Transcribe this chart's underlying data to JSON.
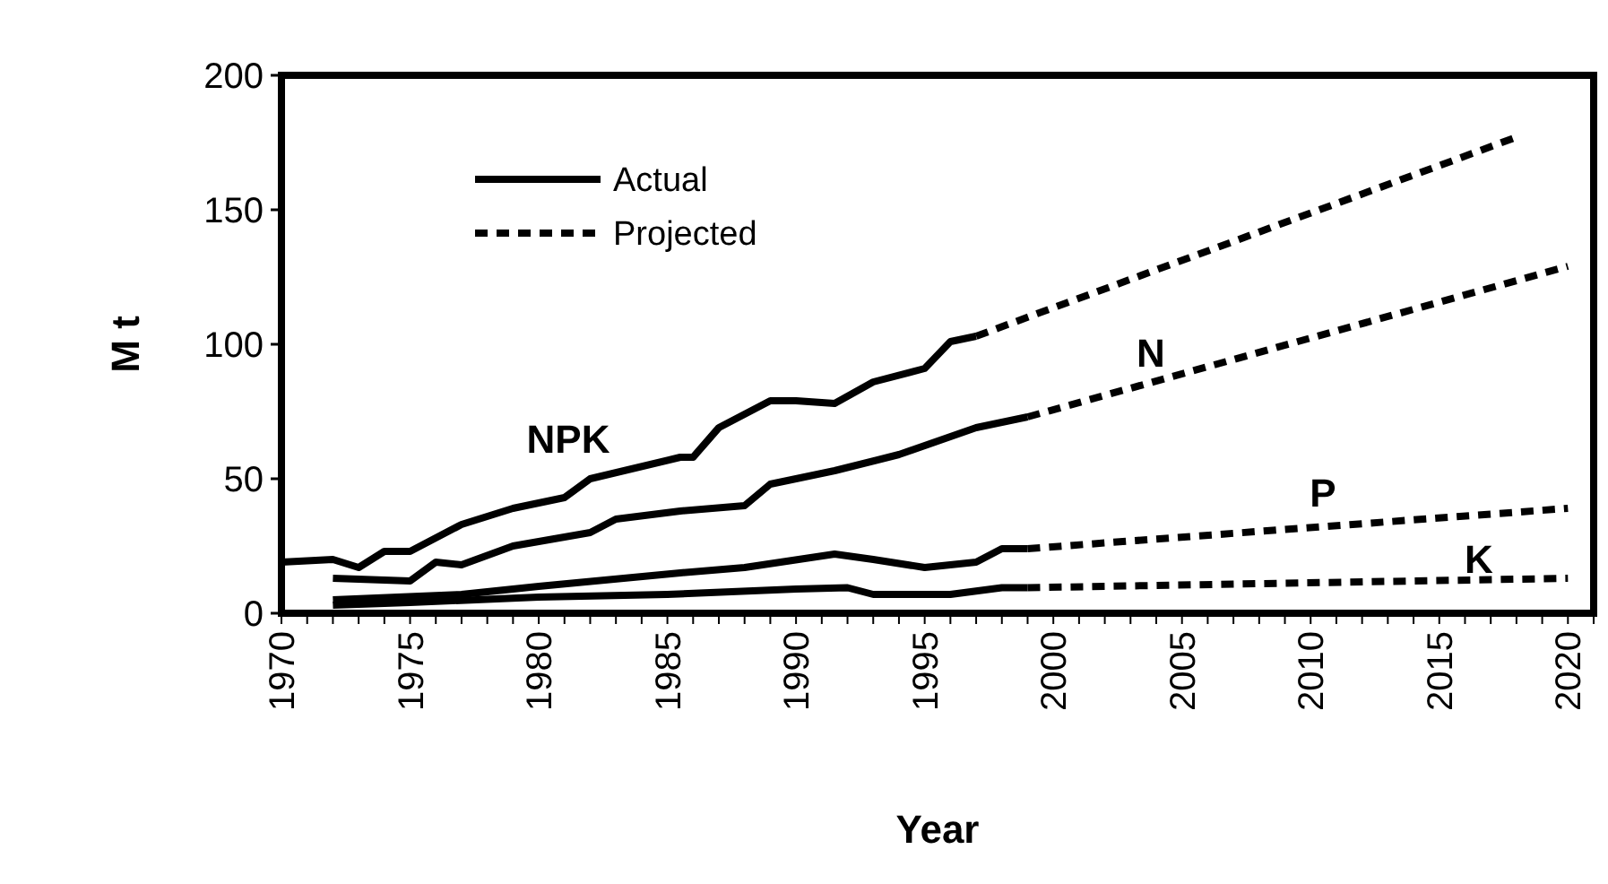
{
  "chart_data": {
    "type": "line",
    "xlabel": "Year",
    "ylabel": "M t",
    "xlim": [
      1970,
      2021
    ],
    "ylim": [
      0,
      200
    ],
    "yticks": [
      0,
      50,
      100,
      150,
      200
    ],
    "xticks": [
      1970,
      {
        "value": 1971,
        "label": null
      },
      {
        "value": 1972,
        "label": null
      },
      {
        "value": 1973,
        "label": null
      },
      {
        "value": 1974,
        "label": null
      },
      1975,
      {
        "value": 1976,
        "label": null
      },
      {
        "value": 1977,
        "label": null
      },
      {
        "value": 1978,
        "label": null
      },
      {
        "value": 1979,
        "label": null
      },
      1980,
      {
        "value": 1981,
        "label": null
      },
      {
        "value": 1982,
        "label": null
      },
      {
        "value": 1983,
        "label": null
      },
      {
        "value": 1984,
        "label": null
      },
      1985,
      {
        "value": 1986,
        "label": null
      },
      {
        "value": 1987,
        "label": null
      },
      {
        "value": 1988,
        "label": null
      },
      {
        "value": 1989,
        "label": null
      },
      1990,
      {
        "value": 1991,
        "label": null
      },
      {
        "value": 1992,
        "label": null
      },
      {
        "value": 1993,
        "label": null
      },
      {
        "value": 1994,
        "label": null
      },
      1995,
      {
        "value": 1996,
        "label": null
      },
      {
        "value": 1997,
        "label": null
      },
      {
        "value": 1998,
        "label": null
      },
      {
        "value": 1999,
        "label": null
      },
      2000,
      {
        "value": 2001,
        "label": null
      },
      {
        "value": 2002,
        "label": null
      },
      {
        "value": 2003,
        "label": null
      },
      {
        "value": 2004,
        "label": null
      },
      2005,
      {
        "value": 2006,
        "label": null
      },
      {
        "value": 2007,
        "label": null
      },
      {
        "value": 2008,
        "label": null
      },
      {
        "value": 2009,
        "label": null
      },
      2010,
      {
        "value": 2011,
        "label": null
      },
      {
        "value": 2012,
        "label": null
      },
      {
        "value": 2013,
        "label": null
      },
      {
        "value": 2014,
        "label": null
      },
      2015,
      {
        "value": 2016,
        "label": null
      },
      {
        "value": 2017,
        "label": null
      },
      {
        "value": 2018,
        "label": null
      },
      {
        "value": 2019,
        "label": null
      },
      2020,
      {
        "value": 2021,
        "label": null
      }
    ],
    "grid": false,
    "legend": "top left",
    "marker": "none",
    "series": [
      {
        "name": "Actual",
        "color": "#000000",
        "line_style": "solid",
        "x": [
          1970,
          1972,
          1973,
          1974,
          1975,
          1977,
          1979,
          1981,
          1982,
          1985.5,
          1986,
          1987,
          1989,
          1990,
          1991.5,
          1993,
          1995,
          1996,
          1997
        ],
        "values": [
          19,
          20,
          17,
          23,
          23,
          33,
          39,
          43,
          50,
          58,
          58,
          69,
          79,
          79,
          78,
          86,
          91,
          101,
          103
        ]
      },
      {
        "name": "Projected",
        "color": "#000000",
        "line_style": "dashed",
        "x": [
          1997,
          2018
        ],
        "values": [
          103,
          177
        ]
      },
      {
        "color": "#000000",
        "line_style": "solid",
        "x": [
          1972,
          1975,
          1976,
          1977,
          1979,
          1982,
          1983,
          1985.5,
          1988,
          1989,
          1991.5,
          1994,
          1997,
          1999
        ],
        "values": [
          13,
          12,
          19,
          18,
          25,
          30,
          35,
          38,
          40,
          48,
          53,
          59,
          69,
          73
        ]
      },
      {
        "color": "#000000",
        "line_style": "dashed",
        "x": [
          1999,
          2020
        ],
        "values": [
          73,
          129
        ]
      },
      {
        "color": "#000000",
        "line_style": "solid",
        "x": [
          1972,
          1977,
          1980,
          1985.5,
          1988,
          1991.5,
          1993,
          1995,
          1997,
          1998,
          1999
        ],
        "values": [
          5,
          7,
          10,
          15,
          17,
          22,
          20,
          17,
          19,
          24,
          24
        ]
      },
      {
        "color": "#000000",
        "line_style": "dashed",
        "x": [
          1999,
          2020
        ],
        "values": [
          24,
          39
        ]
      },
      {
        "color": "#000000",
        "line_style": "solid",
        "x": [
          1972,
          1975,
          1980,
          1985,
          1990,
          1992,
          1993,
          1996,
          1998,
          1999
        ],
        "values": [
          3,
          4,
          6,
          7,
          9,
          9.5,
          7,
          7,
          9.5,
          9.5
        ]
      },
      {
        "color": "#000000",
        "line_style": "dashed",
        "x": [
          1999,
          2020
        ],
        "values": [
          9.5,
          13
        ]
      }
    ],
    "annotations": [
      "NPK",
      "N",
      "P",
      "K"
    ]
  }
}
